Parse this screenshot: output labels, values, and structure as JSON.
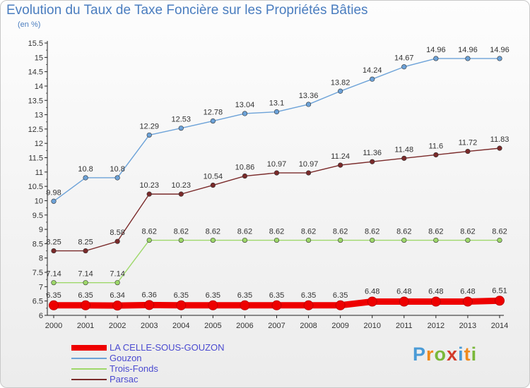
{
  "header": {
    "title": "Evolution du Taux de Taxe Foncière sur les Propriétés Bâties",
    "unit": "(en %)"
  },
  "logo": {
    "text": "Proxiti",
    "colors": [
      "#4a9bd6",
      "#f08a1c",
      "#7ab83a",
      "#d23c2c",
      "#4a9bd6",
      "#f08a1c",
      "#7ab83a"
    ]
  },
  "chart_data": {
    "type": "line",
    "x": [
      "2000",
      "2001",
      "2002",
      "2003",
      "2004",
      "2005",
      "2006",
      "2007",
      "2008",
      "2009",
      "2010",
      "2011",
      "2012",
      "2013",
      "2014"
    ],
    "ylim": [
      6,
      15.5
    ],
    "yticks": [
      "6",
      "6.5",
      "7",
      "7.5",
      "8",
      "8.5",
      "9",
      "9.5",
      "10",
      "10.5",
      "11",
      "11.5",
      "12",
      "12.5",
      "13",
      "13.5",
      "14",
      "14.5",
      "15",
      "15.5"
    ],
    "grid": false,
    "legend_position": "bottom-left",
    "series": [
      {
        "name": "LA CELLE-SOUS-GOUZON",
        "color": "#ee0000",
        "values": [
          6.35,
          6.35,
          6.34,
          6.36,
          6.35,
          6.35,
          6.35,
          6.35,
          6.35,
          6.35,
          6.48,
          6.48,
          6.48,
          6.48,
          6.51
        ],
        "labels": [
          "6.35",
          "6.35",
          "6.34",
          "6.36",
          "6.35",
          "6.35",
          "6.35",
          "6.35",
          "6.35",
          "6.35",
          "6.48",
          "6.48",
          "6.48",
          "6.48",
          "6.51"
        ]
      },
      {
        "name": "Gouzon",
        "color": "#6ca2d8",
        "values": [
          9.98,
          10.8,
          10.8,
          12.29,
          12.53,
          12.78,
          13.04,
          13.1,
          13.36,
          13.82,
          14.24,
          14.67,
          14.96,
          14.96,
          14.96
        ],
        "labels": [
          "9.98",
          "10.8",
          "10.8",
          "12.29",
          "12.53",
          "12.78",
          "13.04",
          "13.1",
          "13.36",
          "13.82",
          "14.24",
          "14.67",
          "14.96",
          "14.96",
          "14.96"
        ]
      },
      {
        "name": "Trois-Fonds",
        "color": "#9ed86a",
        "values": [
          7.14,
          7.14,
          7.14,
          8.62,
          8.62,
          8.62,
          8.62,
          8.62,
          8.62,
          8.62,
          8.62,
          8.62,
          8.62,
          8.62,
          8.62
        ],
        "labels": [
          "7.14",
          "7.14",
          "7.14",
          "8.62",
          "8.62",
          "8.62",
          "8.62",
          "8.62",
          "8.62",
          "8.62",
          "8.62",
          "8.62",
          "8.62",
          "8.62",
          "8.62"
        ]
      },
      {
        "name": "Parsac",
        "color": "#7a2a2a",
        "values": [
          8.25,
          8.25,
          8.58,
          10.23,
          10.23,
          10.54,
          10.86,
          10.97,
          10.97,
          11.24,
          11.36,
          11.48,
          11.6,
          11.72,
          11.83
        ],
        "labels": [
          "8.25",
          "8.25",
          "8.58",
          "10.23",
          "10.23",
          "10.54",
          "10.86",
          "10.97",
          "10.97",
          "11.24",
          "11.36",
          "11.48",
          "11.6",
          "11.72",
          "11.83"
        ]
      }
    ]
  }
}
